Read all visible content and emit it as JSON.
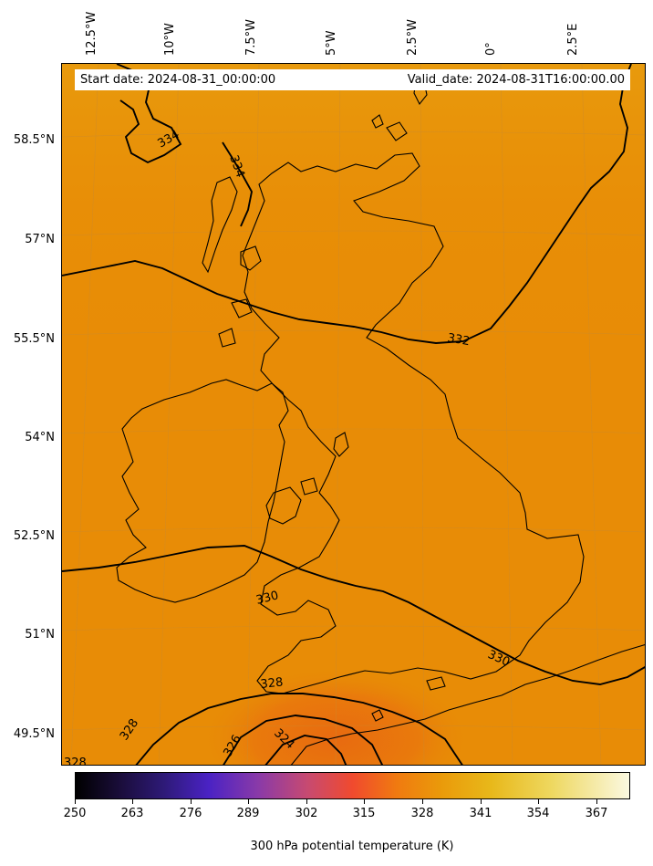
{
  "map": {
    "longitude_labels": [
      "12.5°W",
      "10°W",
      "7.5°W",
      "5°W",
      "2.5°W",
      "0°",
      "2.5°E"
    ],
    "latitude_labels": [
      "58.5°N",
      "57°N",
      "55.5°N",
      "54°N",
      "52.5°N",
      "51°N",
      "49.5°N"
    ],
    "start_date": "Start date: 2024-08-31_00:00:00",
    "valid_date": "Valid_date: 2024-08-31T16:00:00.00",
    "contour_labels": [
      "334",
      "334",
      "332",
      "330",
      "330",
      "328",
      "328",
      "328",
      "326",
      "324"
    ],
    "field_color": "#e88c06"
  },
  "colorbar": {
    "ticks": [
      "250",
      "263",
      "276",
      "289",
      "302",
      "315",
      "328",
      "341",
      "354",
      "367"
    ],
    "label": "300 hPa potential temperature (K)",
    "colormap": "CMRmap"
  }
}
